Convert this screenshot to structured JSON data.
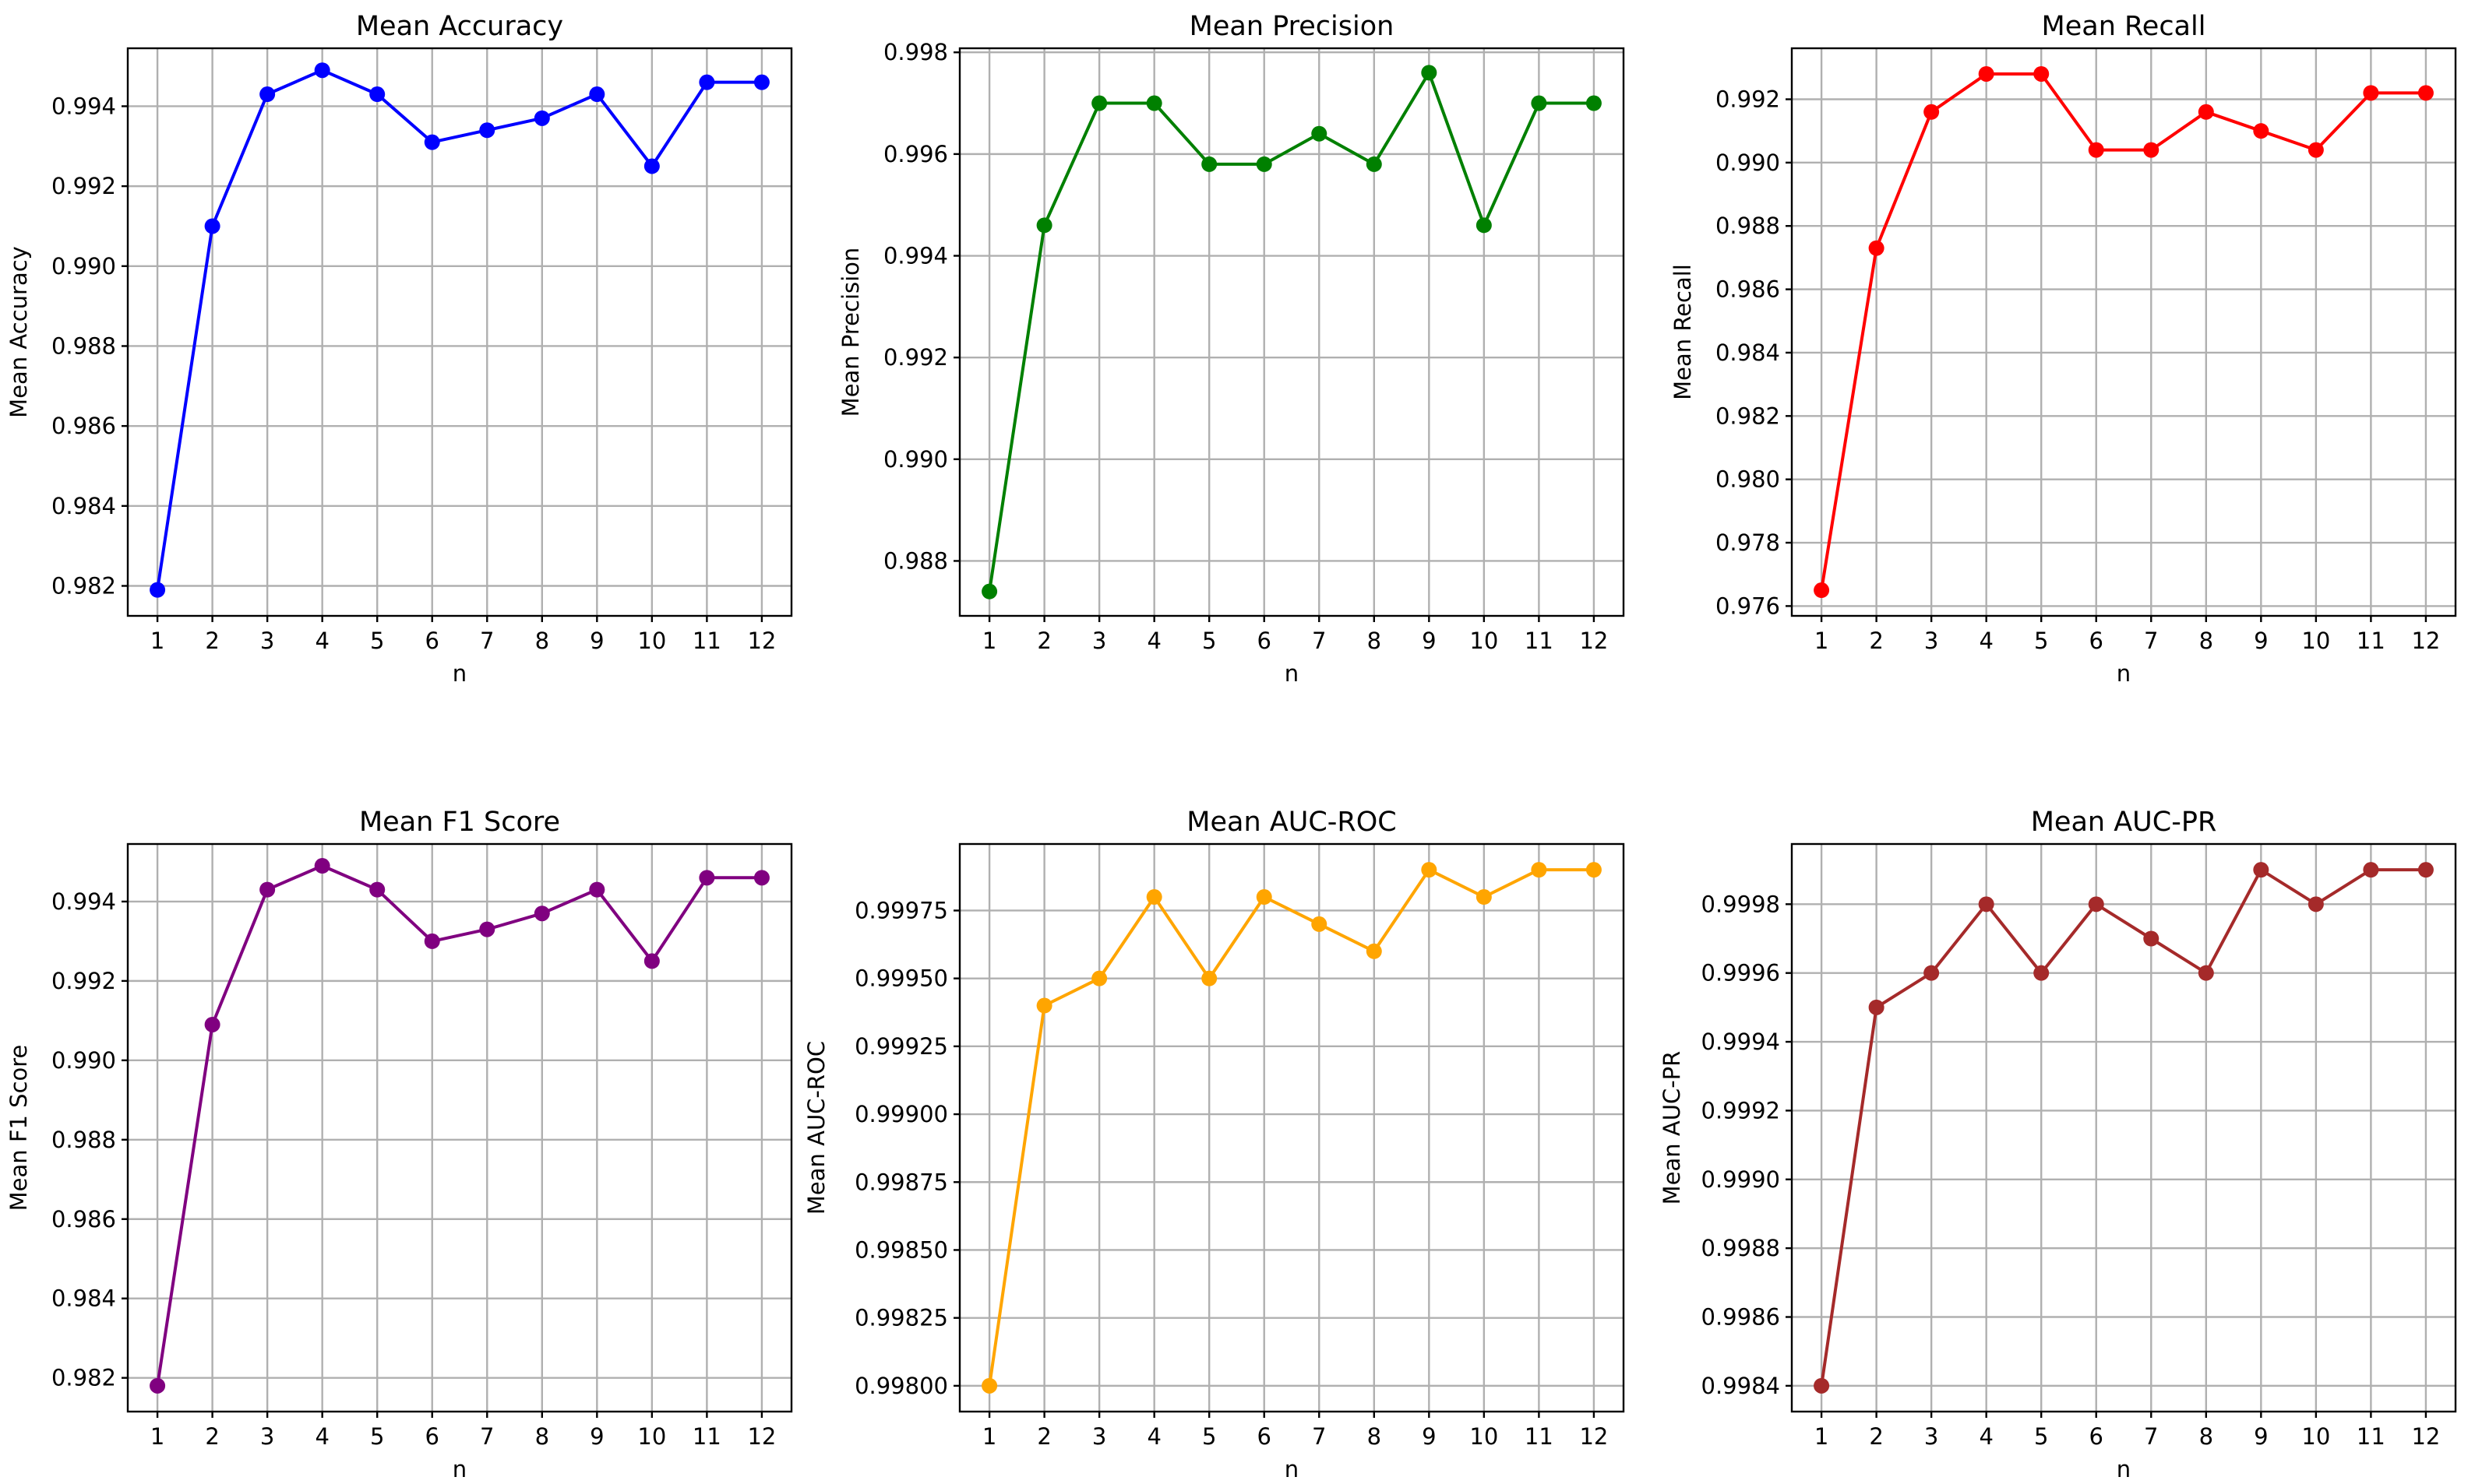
{
  "figure": {
    "layout": "2x3 grid"
  },
  "chart_data": [
    {
      "type": "line",
      "title": "Mean Accuracy",
      "xlabel": "n",
      "ylabel": "Mean Accuracy",
      "color": "#0000ff",
      "x": [
        1,
        2,
        3,
        4,
        5,
        6,
        7,
        8,
        9,
        10,
        11,
        12
      ],
      "values": [
        0.9819,
        0.991,
        0.9943,
        0.9949,
        0.9943,
        0.9931,
        0.9934,
        0.9937,
        0.9943,
        0.9925,
        0.9946,
        0.9946
      ],
      "ylim": [
        0.98125,
        0.99545
      ],
      "yticks": [
        0.982,
        0.984,
        0.986,
        0.988,
        0.99,
        0.992,
        0.994
      ],
      "ytick_labels": [
        "0.982",
        "0.984",
        "0.986",
        "0.988",
        "0.990",
        "0.992",
        "0.994"
      ],
      "xticks": [
        1,
        2,
        3,
        4,
        5,
        6,
        7,
        8,
        9,
        10,
        11,
        12
      ],
      "xtick_labels": [
        "1",
        "2",
        "3",
        "4",
        "5",
        "6",
        "7",
        "8",
        "9",
        "10",
        "11",
        "12"
      ],
      "grid": true,
      "marker": "circle"
    },
    {
      "type": "line",
      "title": "Mean Precision",
      "xlabel": "n",
      "ylabel": "Mean Precision",
      "color": "#008000",
      "x": [
        1,
        2,
        3,
        4,
        5,
        6,
        7,
        8,
        9,
        10,
        11,
        12
      ],
      "values": [
        0.9874,
        0.9946,
        0.997,
        0.997,
        0.9958,
        0.9958,
        0.9964,
        0.9958,
        0.9976,
        0.9946,
        0.997,
        0.997
      ],
      "ylim": [
        0.98692,
        0.99808
      ],
      "yticks": [
        0.988,
        0.99,
        0.992,
        0.994,
        0.996,
        0.998
      ],
      "ytick_labels": [
        "0.988",
        "0.990",
        "0.992",
        "0.994",
        "0.996",
        "0.998"
      ],
      "xticks": [
        1,
        2,
        3,
        4,
        5,
        6,
        7,
        8,
        9,
        10,
        11,
        12
      ],
      "xtick_labels": [
        "1",
        "2",
        "3",
        "4",
        "5",
        "6",
        "7",
        "8",
        "9",
        "10",
        "11",
        "12"
      ],
      "grid": true,
      "marker": "circle"
    },
    {
      "type": "line",
      "title": "Mean Recall",
      "xlabel": "n",
      "ylabel": "Mean Recall",
      "color": "#ff0000",
      "x": [
        1,
        2,
        3,
        4,
        5,
        6,
        7,
        8,
        9,
        10,
        11,
        12
      ],
      "values": [
        0.9765,
        0.9873,
        0.9916,
        0.9928,
        0.9928,
        0.9904,
        0.9904,
        0.9916,
        0.991,
        0.9904,
        0.9922,
        0.9922
      ],
      "ylim": [
        0.97569,
        0.99361
      ],
      "yticks": [
        0.976,
        0.978,
        0.98,
        0.982,
        0.984,
        0.986,
        0.988,
        0.99,
        0.992
      ],
      "ytick_labels": [
        "0.976",
        "0.978",
        "0.980",
        "0.982",
        "0.984",
        "0.986",
        "0.988",
        "0.990",
        "0.992"
      ],
      "xticks": [
        1,
        2,
        3,
        4,
        5,
        6,
        7,
        8,
        9,
        10,
        11,
        12
      ],
      "xtick_labels": [
        "1",
        "2",
        "3",
        "4",
        "5",
        "6",
        "7",
        "8",
        "9",
        "10",
        "11",
        "12"
      ],
      "grid": true,
      "marker": "circle"
    },
    {
      "type": "line",
      "title": "Mean F1 Score",
      "xlabel": "n",
      "ylabel": "Mean F1 Score",
      "color": "#800080",
      "x": [
        1,
        2,
        3,
        4,
        5,
        6,
        7,
        8,
        9,
        10,
        11,
        12
      ],
      "values": [
        0.9818,
        0.9909,
        0.9943,
        0.9949,
        0.9943,
        0.993,
        0.9933,
        0.9937,
        0.9943,
        0.9925,
        0.9946,
        0.9946
      ],
      "ylim": [
        0.98115,
        0.99545
      ],
      "yticks": [
        0.982,
        0.984,
        0.986,
        0.988,
        0.99,
        0.992,
        0.994
      ],
      "ytick_labels": [
        "0.982",
        "0.984",
        "0.986",
        "0.988",
        "0.990",
        "0.992",
        "0.994"
      ],
      "xticks": [
        1,
        2,
        3,
        4,
        5,
        6,
        7,
        8,
        9,
        10,
        11,
        12
      ],
      "xtick_labels": [
        "1",
        "2",
        "3",
        "4",
        "5",
        "6",
        "7",
        "8",
        "9",
        "10",
        "11",
        "12"
      ],
      "grid": true,
      "marker": "circle"
    },
    {
      "type": "line",
      "title": "Mean AUC-ROC",
      "xlabel": "n",
      "ylabel": "Mean AUC-ROC",
      "color": "#ffa500",
      "x": [
        1,
        2,
        3,
        4,
        5,
        6,
        7,
        8,
        9,
        10,
        11,
        12
      ],
      "values": [
        0.998,
        0.9994,
        0.9995,
        0.9998,
        0.9995,
        0.9998,
        0.9997,
        0.9996,
        0.9999,
        0.9998,
        0.9999,
        0.9999
      ],
      "ylim": [
        0.997905,
        0.999995
      ],
      "yticks": [
        0.998,
        0.99825,
        0.9985,
        0.99875,
        0.999,
        0.99925,
        0.9995,
        0.99975
      ],
      "ytick_labels": [
        "0.99800",
        "0.99825",
        "0.99850",
        "0.99875",
        "0.99900",
        "0.99925",
        "0.99950",
        "0.99975"
      ],
      "xticks": [
        1,
        2,
        3,
        4,
        5,
        6,
        7,
        8,
        9,
        10,
        11,
        12
      ],
      "xtick_labels": [
        "1",
        "2",
        "3",
        "4",
        "5",
        "6",
        "7",
        "8",
        "9",
        "10",
        "11",
        "12"
      ],
      "grid": true,
      "marker": "circle"
    },
    {
      "type": "line",
      "title": "Mean AUC-PR",
      "xlabel": "n",
      "ylabel": "Mean AUC-PR",
      "color": "#a52a2a",
      "x": [
        1,
        2,
        3,
        4,
        5,
        6,
        7,
        8,
        9,
        10,
        11,
        12
      ],
      "values": [
        0.9984,
        0.9995,
        0.9996,
        0.9998,
        0.9996,
        0.9998,
        0.9997,
        0.9996,
        0.9999,
        0.9998,
        0.9999,
        0.9999
      ],
      "ylim": [
        0.998325,
        0.999975
      ],
      "yticks": [
        0.9984,
        0.9986,
        0.9988,
        0.999,
        0.9992,
        0.9994,
        0.9996,
        0.9998
      ],
      "ytick_labels": [
        "0.9984",
        "0.9986",
        "0.9988",
        "0.9990",
        "0.9992",
        "0.9994",
        "0.9996",
        "0.9998"
      ],
      "xticks": [
        1,
        2,
        3,
        4,
        5,
        6,
        7,
        8,
        9,
        10,
        11,
        12
      ],
      "xtick_labels": [
        "1",
        "2",
        "3",
        "4",
        "5",
        "6",
        "7",
        "8",
        "9",
        "10",
        "11",
        "12"
      ],
      "grid": true,
      "marker": "circle"
    }
  ]
}
